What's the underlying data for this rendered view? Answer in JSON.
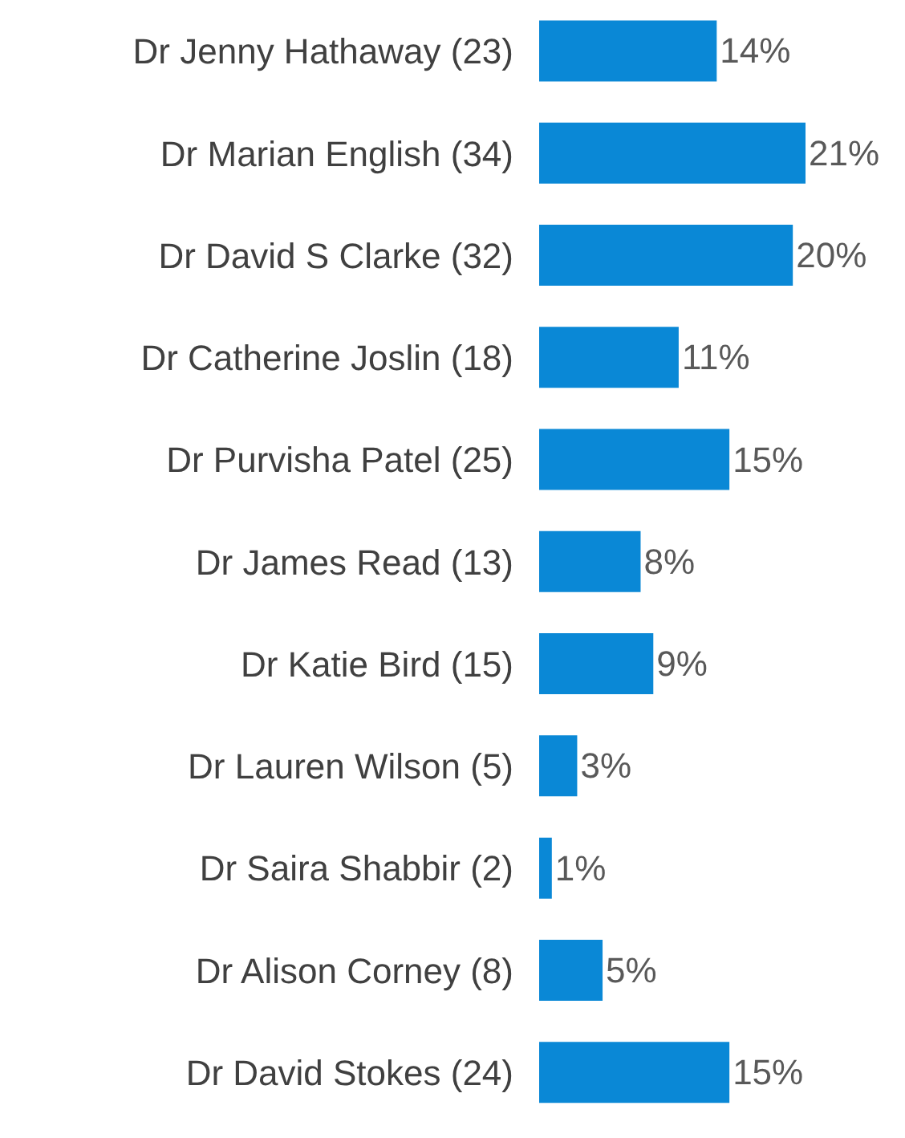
{
  "chart_data": {
    "type": "bar",
    "orientation": "horizontal",
    "categories": [
      "Dr Jenny Hathaway (23)",
      "Dr Marian English (34)",
      "Dr David S Clarke (32)",
      "Dr Catherine Joslin (18)",
      "Dr Purvisha Patel (25)",
      "Dr James Read (13)",
      "Dr Katie Bird (15)",
      "Dr Lauren Wilson (5)",
      "Dr Saira Shabbir (2)",
      "Dr Alison Corney (8)",
      "Dr David Stokes (24)"
    ],
    "values": [
      14,
      21,
      20,
      11,
      15,
      8,
      9,
      3,
      1,
      5,
      15
    ],
    "value_labels": [
      "14%",
      "21%",
      "20%",
      "11%",
      "15%",
      "8%",
      "9%",
      "3%",
      "1%",
      "5%",
      "15%"
    ],
    "color": "#0a88d6"
  }
}
